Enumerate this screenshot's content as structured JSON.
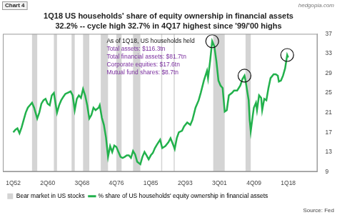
{
  "chart_data": {
    "type": "line",
    "chart_label": "Chart 4",
    "watermark": "hedgopia.com",
    "title": "1Q18 US households' share of equity ownership in financial assets",
    "subtitle": "32.2% -- cycle high 32.7% in 4Q17 highest since '99/'00 highs",
    "source": "Source: Fed",
    "annotation": {
      "heading": "As of 1Q18, US households held",
      "lines": [
        "Total assets: $116.3tn",
        "Total financial assets: $81.7tn",
        "Corporate equities: $17.6tn",
        "Mutual fund shares: $8.7tn"
      ]
    },
    "x": [
      1952,
      1952.5,
      1953,
      1953.5,
      1954,
      1954.5,
      1955,
      1955.5,
      1956,
      1956.5,
      1957,
      1957.75,
      1958.25,
      1958.75,
      1959.25,
      1959.75,
      1960.25,
      1960.75,
      1961.25,
      1961.75,
      1962.5,
      1963,
      1963.5,
      1964,
      1964.5,
      1965,
      1965.75,
      1966.25,
      1966.75,
      1967.25,
      1967.75,
      1968.25,
      1968.75,
      1969.25,
      1969.75,
      1970.25,
      1970.75,
      1971.25,
      1971.75,
      1972.5,
      1972.75,
      1973.25,
      1973.75,
      1974.25,
      1974.75,
      1975.25,
      1975.75,
      1976.25,
      1976.75,
      1977.25,
      1977.75,
      1978.25,
      1978.75,
      1979.25,
      1979.75,
      1980.25,
      1980.75,
      1981.25,
      1981.75,
      1982.5,
      1983,
      1983.5,
      1984,
      1984.5,
      1985,
      1985.5,
      1986,
      1986.5,
      1987.25,
      1987.75,
      1988.5,
      1989.25,
      1989.75,
      1990.5,
      1990.75,
      1991.25,
      1991.75,
      1992.5,
      1993,
      1993.75,
      1994.5,
      1995,
      1995.75,
      1996.5,
      1997,
      1997.75,
      1998.5,
      1998.75,
      1999.25,
      1999.75,
      2000.25,
      2000.75,
      2001.25,
      2001.75,
      2002.25,
      2002.75,
      2003.25,
      2003.75,
      2004.5,
      2005,
      2005.75,
      2006.5,
      2007,
      2007.5,
      2007.75,
      2008.5,
      2008.75,
      2009,
      2009.5,
      2009.75,
      2010.25,
      2010.5,
      2011,
      2011.5,
      2011.75,
      2012.25,
      2012.75,
      2013.25,
      2013.75,
      2014.5,
      2015,
      2015.5,
      2015.75,
      2016.25,
      2016.75,
      2017.25,
      2017.75,
      2018
    ],
    "series": [
      {
        "name": "% share of US households' equity ownership in financial assets",
        "color": "#22b14c",
        "values": [
          17.0,
          17.5,
          17.8,
          16.8,
          18.0,
          19.5,
          21.0,
          22.0,
          22.5,
          23.0,
          22.0,
          19.8,
          21.0,
          22.8,
          23.5,
          23.8,
          22.8,
          22.5,
          24.5,
          25.0,
          21.0,
          22.5,
          23.5,
          24.2,
          24.8,
          25.0,
          25.3,
          24.5,
          21.5,
          23.8,
          24.5,
          24.0,
          25.8,
          24.5,
          22.5,
          19.8,
          20.5,
          22.0,
          21.5,
          22.0,
          22.5,
          20.0,
          18.5,
          16.0,
          12.0,
          14.2,
          13.0,
          14.3,
          14.0,
          13.0,
          12.0,
          11.8,
          12.0,
          12.3,
          12.3,
          11.8,
          13.2,
          12.5,
          11.0,
          10.5,
          12.0,
          13.0,
          12.3,
          11.5,
          12.3,
          12.8,
          13.8,
          14.5,
          15.5,
          13.8,
          14.2,
          15.0,
          15.8,
          14.2,
          13.6,
          15.8,
          17.0,
          17.3,
          18.2,
          19.0,
          18.5,
          19.5,
          22.0,
          23.5,
          25.0,
          27.5,
          29.5,
          28.0,
          31.5,
          35.5,
          34.5,
          31.5,
          27.5,
          26.5,
          26.0,
          21.2,
          21.5,
          24.5,
          25.0,
          25.5,
          25.5,
          26.5,
          27.8,
          28.5,
          27.5,
          23.5,
          19.5,
          17.2,
          20.5,
          22.0,
          23.0,
          21.5,
          24.5,
          24.0,
          21.5,
          23.8,
          23.5,
          26.0,
          28.0,
          28.8,
          28.8,
          28.5,
          27.3,
          27.5,
          28.5,
          30.0,
          32.7,
          32.2
        ]
      }
    ],
    "bear_markets": {
      "name": "Bear market in US stocks",
      "color": "#d4d4d4",
      "ranges": [
        [
          1956.5,
          1957.75
        ],
        [
          1961.75,
          1962.5
        ],
        [
          1966,
          1966.75
        ],
        [
          1968.75,
          1970.25
        ],
        [
          1973,
          1974.75
        ],
        [
          1976.75,
          1978
        ],
        [
          1980.75,
          1982.5
        ],
        [
          1987.5,
          1987.75
        ],
        [
          1990.5,
          1990.75
        ],
        [
          2000,
          2002.75
        ],
        [
          2007.75,
          2009
        ]
      ]
    },
    "highlighted_x": [
      1999.75,
      2007.5,
      2017.75
    ],
    "xlim": [
      1949.5,
      2025
    ],
    "xticks": [
      {
        "value": 1952,
        "label": "1Q52"
      },
      {
        "value": 1960.25,
        "label": "2Q60"
      },
      {
        "value": 1968.5,
        "label": "3Q68"
      },
      {
        "value": 1976.75,
        "label": "4Q76"
      },
      {
        "value": 1985,
        "label": "1Q85"
      },
      {
        "value": 1993.25,
        "label": "2Q93"
      },
      {
        "value": 2001.5,
        "label": "3Q01"
      },
      {
        "value": 2009.75,
        "label": "4Q09"
      },
      {
        "value": 2018,
        "label": "1Q18"
      }
    ],
    "ylim": [
      9,
      37
    ],
    "yticks": [
      9,
      13,
      17,
      21,
      25,
      29,
      33,
      37
    ],
    "grid": false,
    "legend": "bottom"
  }
}
